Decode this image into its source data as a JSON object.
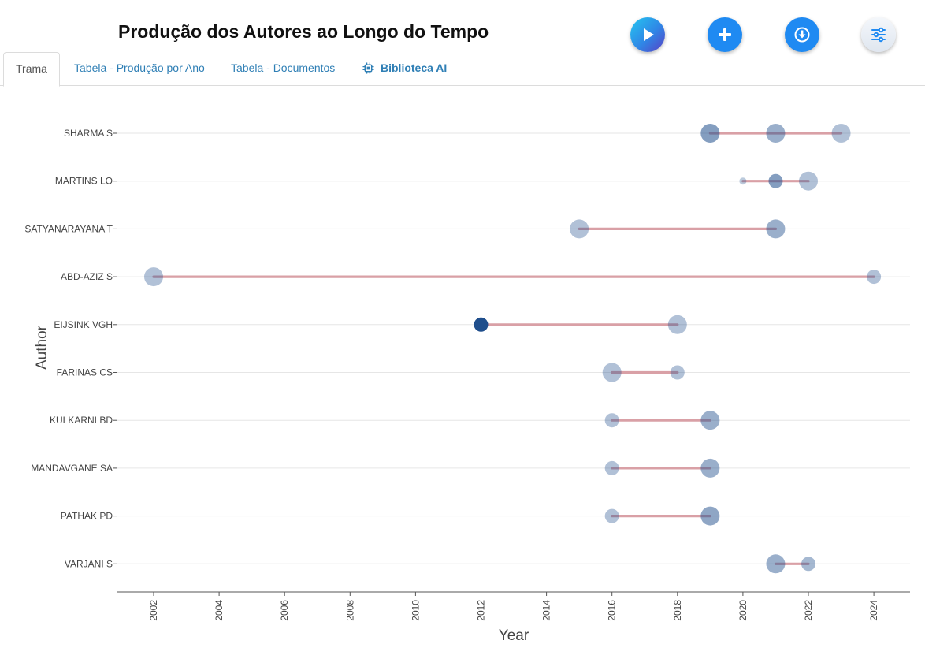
{
  "header": {
    "title": "Produção dos Autores ao Longo do Tempo",
    "buttons": [
      {
        "icon": "play-icon",
        "color": "#2f86e6"
      },
      {
        "icon": "plus-icon",
        "color": "#1f8af2"
      },
      {
        "icon": "download-icon",
        "color": "#1f8af2"
      },
      {
        "icon": "sliders-icon",
        "color": "#1f8af2"
      }
    ]
  },
  "tabs": [
    {
      "label": "Trama",
      "active": true
    },
    {
      "label": "Tabela - Produção por Ano",
      "active": false
    },
    {
      "label": "Tabela - Documentos",
      "active": false
    },
    {
      "label": "Biblioteca AI",
      "active": false,
      "icon": "chip-icon"
    }
  ],
  "chart_data": {
    "type": "scatter",
    "title": "",
    "xlabel": "Year",
    "ylabel": "Author",
    "xlim": [
      2001,
      2025
    ],
    "xticks": [
      2002,
      2004,
      2006,
      2008,
      2010,
      2012,
      2014,
      2016,
      2018,
      2020,
      2022,
      2024
    ],
    "grid": "horizontal",
    "line_color": "#d9a0a6",
    "point_color": "#1f4e8c",
    "authors": [
      {
        "name": "SHARMA S",
        "range": [
          2019,
          2023
        ],
        "points": [
          {
            "year": 2019,
            "size": 3,
            "opacity": 0.55
          },
          {
            "year": 2021,
            "size": 3,
            "opacity": 0.45
          },
          {
            "year": 2023,
            "size": 3,
            "opacity": 0.35
          }
        ]
      },
      {
        "name": "MARTINS LO",
        "range": [
          2020,
          2022
        ],
        "points": [
          {
            "year": 2020,
            "size": 1,
            "opacity": 0.3
          },
          {
            "year": 2021,
            "size": 2,
            "opacity": 0.55
          },
          {
            "year": 2022,
            "size": 3,
            "opacity": 0.35
          }
        ]
      },
      {
        "name": "SATYANARAYANA T",
        "range": [
          2015,
          2021
        ],
        "points": [
          {
            "year": 2015,
            "size": 3,
            "opacity": 0.35
          },
          {
            "year": 2021,
            "size": 3,
            "opacity": 0.45
          }
        ]
      },
      {
        "name": "ABD-AZIZ S",
        "range": [
          2002,
          2024
        ],
        "points": [
          {
            "year": 2002,
            "size": 3,
            "opacity": 0.35
          },
          {
            "year": 2024,
            "size": 2,
            "opacity": 0.35
          }
        ]
      },
      {
        "name": "EIJSINK VGH",
        "range": [
          2012,
          2018
        ],
        "points": [
          {
            "year": 2012,
            "size": 2,
            "opacity": 1.0
          },
          {
            "year": 2018,
            "size": 3,
            "opacity": 0.35
          }
        ]
      },
      {
        "name": "FARINAS CS",
        "range": [
          2016,
          2018
        ],
        "points": [
          {
            "year": 2016,
            "size": 3,
            "opacity": 0.35
          },
          {
            "year": 2018,
            "size": 2,
            "opacity": 0.35
          }
        ]
      },
      {
        "name": "KULKARNI BD",
        "range": [
          2016,
          2019
        ],
        "points": [
          {
            "year": 2016,
            "size": 2,
            "opacity": 0.35
          },
          {
            "year": 2019,
            "size": 3,
            "opacity": 0.45
          }
        ]
      },
      {
        "name": "MANDAVGANE SA",
        "range": [
          2016,
          2019
        ],
        "points": [
          {
            "year": 2016,
            "size": 2,
            "opacity": 0.35
          },
          {
            "year": 2019,
            "size": 3,
            "opacity": 0.45
          }
        ]
      },
      {
        "name": "PATHAK PD",
        "range": [
          2016,
          2019
        ],
        "points": [
          {
            "year": 2016,
            "size": 2,
            "opacity": 0.35
          },
          {
            "year": 2019,
            "size": 3,
            "opacity": 0.5
          }
        ]
      },
      {
        "name": "VARJANI S",
        "range": [
          2021,
          2022
        ],
        "points": [
          {
            "year": 2021,
            "size": 3,
            "opacity": 0.45
          },
          {
            "year": 2022,
            "size": 2,
            "opacity": 0.4
          }
        ]
      }
    ]
  }
}
